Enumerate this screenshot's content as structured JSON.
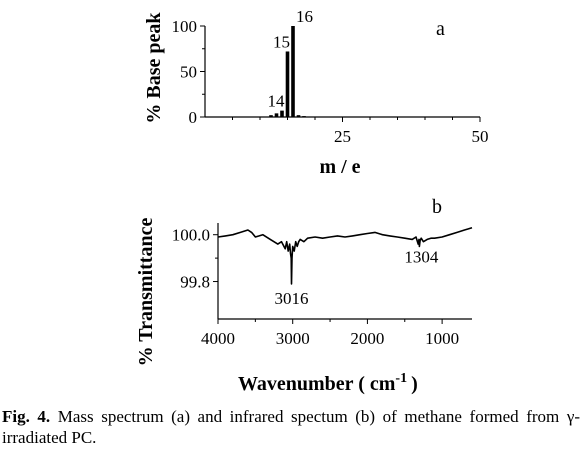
{
  "chart_data": [
    {
      "panel": "a",
      "type": "bar",
      "xlabel": "m / e",
      "ylabel": "% Base peak",
      "xticks": [
        "25",
        "50"
      ],
      "yticks": [
        "0",
        "50",
        "100"
      ],
      "xlim": [
        0,
        50
      ],
      "ylim": [
        0,
        100
      ],
      "peaks": [
        {
          "mz": 12,
          "value": 2,
          "label": ""
        },
        {
          "mz": 13,
          "value": 4,
          "label": ""
        },
        {
          "mz": 14,
          "value": 7,
          "label": "14"
        },
        {
          "mz": 15,
          "value": 72,
          "label": "15"
        },
        {
          "mz": 16,
          "value": 100,
          "label": "16"
        },
        {
          "mz": 17,
          "value": 2,
          "label": ""
        },
        {
          "mz": 18,
          "value": 1,
          "label": ""
        }
      ]
    },
    {
      "panel": "b",
      "type": "line",
      "xlabel": "Wavenumber ( cm",
      "xlabel_sup": "-1",
      "xlabel_tail": ")",
      "ylabel": "% Transmittance",
      "xticks": [
        "4000",
        "3000",
        "2000",
        "1000"
      ],
      "yticks": [
        "99.8",
        "100.0"
      ],
      "xlim": [
        4000,
        600
      ],
      "ylim": [
        99.64,
        100.05
      ],
      "annotations": [
        {
          "x": 3016,
          "y": 99.79,
          "label": "3016"
        },
        {
          "x": 1304,
          "y": 99.95,
          "label": "1304"
        }
      ],
      "x": [
        4000,
        3900,
        3800,
        3700,
        3600,
        3550,
        3500,
        3450,
        3400,
        3300,
        3200,
        3150,
        3100,
        3080,
        3060,
        3040,
        3030,
        3020,
        3016,
        3010,
        3000,
        2980,
        2960,
        2940,
        2920,
        2900,
        2850,
        2800,
        2700,
        2600,
        2500,
        2400,
        2300,
        2200,
        2100,
        2000,
        1900,
        1800,
        1700,
        1600,
        1500,
        1400,
        1350,
        1320,
        1310,
        1304,
        1295,
        1280,
        1250,
        1200,
        1150,
        1100,
        1000,
        900,
        800,
        700,
        650,
        600
      ],
      "y": [
        99.99,
        99.995,
        100.0,
        100.01,
        100.02,
        100.01,
        99.99,
        99.995,
        100.0,
        99.98,
        99.96,
        99.97,
        99.94,
        99.97,
        99.93,
        99.96,
        99.92,
        99.9,
        99.79,
        99.9,
        99.95,
        99.93,
        99.97,
        99.95,
        99.97,
        99.98,
        99.97,
        99.985,
        99.99,
        99.985,
        99.99,
        99.995,
        99.99,
        99.995,
        100.0,
        100.005,
        100.01,
        100.0,
        99.995,
        99.99,
        99.985,
        99.98,
        99.99,
        99.96,
        99.98,
        99.95,
        99.975,
        99.985,
        99.97,
        99.98,
        99.985,
        99.985,
        99.99,
        100.0,
        100.01,
        100.02,
        100.025,
        100.03
      ]
    }
  ],
  "caption": {
    "label": "Fig. 4.",
    "text": " Mass spectrum (a) and infrared spectum (b) of methane formed from γ-irradiated PC."
  }
}
